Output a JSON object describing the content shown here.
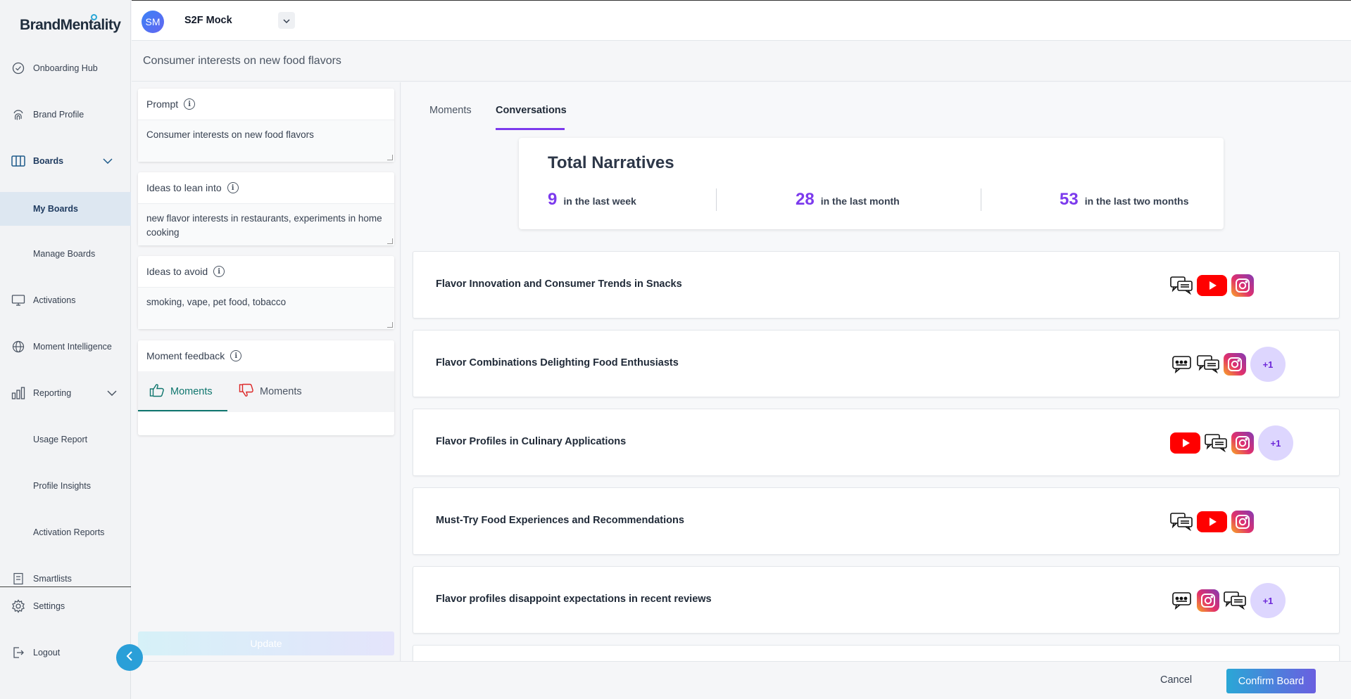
{
  "brand": {
    "name": "BrandMentality"
  },
  "sidebar": {
    "items": [
      {
        "label": "Onboarding Hub",
        "icon": "check-circle-icon"
      },
      {
        "label": "Brand Profile",
        "icon": "fingerprint-icon"
      },
      {
        "label": "Boards",
        "icon": "columns-icon"
      },
      {
        "label": "My Boards"
      },
      {
        "label": "Manage Boards"
      },
      {
        "label": "Activations",
        "icon": "monitor-icon"
      },
      {
        "label": "Moment Intelligence",
        "icon": "globe-icon"
      },
      {
        "label": "Reporting",
        "icon": "bar-chart-icon"
      },
      {
        "label": "Usage Report"
      },
      {
        "label": "Profile Insights"
      },
      {
        "label": "Activation Reports"
      },
      {
        "label": "Smartlists",
        "icon": "list-icon"
      },
      {
        "label": "Settings",
        "icon": "gear-icon"
      },
      {
        "label": "Logout",
        "icon": "logout-icon"
      }
    ]
  },
  "topbar": {
    "avatar_initials": "SM",
    "workspace": "S2F Mock"
  },
  "page": {
    "title": "Consumer interests on new food flavors"
  },
  "form": {
    "prompt_label": "Prompt",
    "prompt_value": "Consumer interests on new food flavors",
    "lean_label": "Ideas to lean into",
    "lean_value": "new flavor interests in restaurants, experiments in home cooking",
    "avoid_label": "Ideas to avoid",
    "avoid_value": "smoking, vape, pet food, tobacco",
    "feedback_label": "Moment feedback",
    "feedback_pos_tab": "Moments",
    "feedback_neg_tab": "Moments",
    "update_label": "Update"
  },
  "tabs": {
    "moments": "Moments",
    "conversations": "Conversations"
  },
  "stats": {
    "title": "Total Narratives",
    "week_num": "9",
    "week_text": "in the last week",
    "month_num": "28",
    "month_text": "in the last month",
    "two_month_num": "53",
    "two_month_text": "in the last two months"
  },
  "narratives": [
    {
      "title": "Flavor Innovation and Consumer Trends in Snacks",
      "sources": [
        "forum-icon",
        "youtube-icon",
        "instagram-icon"
      ]
    },
    {
      "title": "Flavor Combinations Delighting Food Enthusiasts",
      "sources": [
        "review-icon",
        "forum-icon",
        "instagram-icon"
      ],
      "more": "+1"
    },
    {
      "title": "Flavor Profiles in Culinary Applications",
      "sources": [
        "youtube-icon",
        "forum-icon",
        "instagram-icon"
      ],
      "more": "+1"
    },
    {
      "title": "Must-Try Food Experiences and Recommendations",
      "sources": [
        "forum-icon",
        "youtube-icon",
        "instagram-icon"
      ]
    },
    {
      "title": "Flavor profiles disappoint expectations in recent reviews",
      "sources": [
        "review-icon",
        "instagram-icon",
        "forum-icon"
      ],
      "more": "+1"
    }
  ],
  "footer": {
    "cancel": "Cancel",
    "confirm": "Confirm Board"
  },
  "colors": {
    "accent": "#7c3aed",
    "brand_blue": "#2aa7d6",
    "teal": "#0f766e"
  }
}
